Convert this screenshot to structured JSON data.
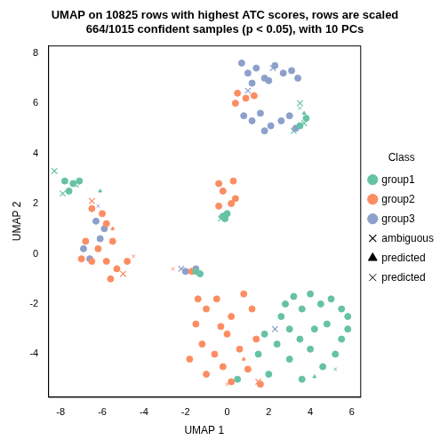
{
  "chart_data": {
    "type": "scatter",
    "title": [
      "UMAP on 10825 rows with highest ATC scores, rows are scaled",
      "664/1015 confident samples (p < 0.05), with 10 PCs"
    ],
    "x_label": "UMAP 1",
    "y_label": "UMAP 2",
    "xlim": [
      -8.6,
      6.4
    ],
    "xticks": [
      -8,
      -6,
      -4,
      -2,
      0,
      2,
      4,
      6
    ],
    "ylim": [
      -5.7,
      8.3
    ],
    "yticks": [
      -4,
      -2,
      0,
      2,
      4,
      6,
      8
    ],
    "grid": false,
    "legend": "right",
    "legend_title": "Class",
    "series": [
      {
        "name": "group1",
        "color": "#66C2A5",
        "marker": "circle",
        "values": [
          [
            -7.8,
            2.9
          ],
          [
            -7.4,
            2.8
          ],
          [
            -7.1,
            2.9
          ],
          [
            -7.6,
            2.5
          ],
          [
            -0.2,
            1.5
          ],
          [
            -0.1,
            1.4
          ],
          [
            0,
            1.6
          ],
          [
            -1.5,
            -0.7
          ],
          [
            -1.3,
            -0.8
          ],
          [
            2.8,
            -2.0
          ],
          [
            3.2,
            -1.7
          ],
          [
            3.6,
            -2.2
          ],
          [
            4.0,
            -1.6
          ],
          [
            4.5,
            -2.0
          ],
          [
            5.0,
            -1.8
          ],
          [
            5.5,
            -2.2
          ],
          [
            5.8,
            -2.5
          ],
          [
            3.0,
            -3.0
          ],
          [
            3.5,
            -3.4
          ],
          [
            4.2,
            -3.0
          ],
          [
            4.8,
            -2.8
          ],
          [
            5.5,
            -3.4
          ],
          [
            2.4,
            -3.6
          ],
          [
            3.0,
            -4.2
          ],
          [
            4.0,
            -3.8
          ],
          [
            4.6,
            -4.5
          ],
          [
            5.2,
            -4.0
          ],
          [
            1.5,
            -4.0
          ],
          [
            2.0,
            -4.8
          ],
          [
            0.5,
            -5.0
          ],
          [
            3.6,
            -5.0
          ],
          [
            2.6,
            -2.5
          ],
          [
            1.8,
            -3.2
          ],
          [
            5.8,
            -3.0
          ],
          [
            3.8,
            5.4
          ],
          [
            3.5,
            5.1
          ]
        ]
      },
      {
        "name": "group2",
        "color": "#FC8D62",
        "marker": "circle",
        "values": [
          [
            -6.5,
            1.8
          ],
          [
            -6.0,
            1.6
          ],
          [
            -5.8,
            1.2
          ],
          [
            -6.8,
            0.5
          ],
          [
            -6.2,
            0.2
          ],
          [
            -5.5,
            0.5
          ],
          [
            -5.8,
            -0.3
          ],
          [
            -5.3,
            -0.6
          ],
          [
            -5.6,
            -1.0
          ],
          [
            -6.5,
            -0.3
          ],
          [
            -7.0,
            -0.2
          ],
          [
            -4.8,
            -0.3
          ],
          [
            -0.4,
            2.8
          ],
          [
            -0.2,
            2.5
          ],
          [
            0.3,
            2.9
          ],
          [
            0.2,
            2.0
          ],
          [
            -0.4,
            1.9
          ],
          [
            0.4,
            2.2
          ],
          [
            -1.7,
            -0.7
          ],
          [
            0.5,
            6.4
          ],
          [
            0.9,
            6.2
          ],
          [
            1.3,
            6.3
          ],
          [
            0.4,
            6.0
          ],
          [
            -1.5,
            -2.8
          ],
          [
            -1.0,
            -2.2
          ],
          [
            -0.5,
            -1.8
          ],
          [
            0.2,
            -2.5
          ],
          [
            0.8,
            -1.6
          ],
          [
            1.2,
            -2.2
          ],
          [
            -1.8,
            -4.2
          ],
          [
            -1.2,
            -3.6
          ],
          [
            -0.6,
            -4.0
          ],
          [
            0,
            -3.2
          ],
          [
            0.6,
            -3.8
          ],
          [
            1.0,
            -4.6
          ],
          [
            -1.0,
            -4.8
          ],
          [
            -0.2,
            -4.5
          ],
          [
            0.2,
            -5.1
          ],
          [
            1.4,
            -3.4
          ],
          [
            1.6,
            -5.2
          ],
          [
            -0.3,
            -2.9
          ],
          [
            -1.4,
            -1.8
          ]
        ]
      },
      {
        "name": "group3",
        "color": "#8DA0CB",
        "marker": "circle",
        "values": [
          [
            0.7,
            7.6
          ],
          [
            1.0,
            7.2
          ],
          [
            1.4,
            7.4
          ],
          [
            1.8,
            7.0
          ],
          [
            2.3,
            7.5
          ],
          [
            2.7,
            7.2
          ],
          [
            3.1,
            7.3
          ],
          [
            3.4,
            7.0
          ],
          [
            1.2,
            6.8
          ],
          [
            2.0,
            6.9
          ],
          [
            0.8,
            5.5
          ],
          [
            1.2,
            5.3
          ],
          [
            1.6,
            5.6
          ],
          [
            2.1,
            5.1
          ],
          [
            2.6,
            5.3
          ],
          [
            3.0,
            5.5
          ],
          [
            3.3,
            5.0
          ],
          [
            1.8,
            4.9
          ],
          [
            -6.9,
            0.2
          ],
          [
            -6.6,
            -0.2
          ],
          [
            -5.9,
            1.0
          ],
          [
            -6.3,
            1.3
          ],
          [
            -1.5,
            -0.6
          ],
          [
            -2.0,
            -0.7
          ],
          [
            -6.1,
            0.6
          ]
        ]
      },
      {
        "name": "ambiguous",
        "color": "#000000",
        "marker": "cross",
        "values": [
          [
            -8.3,
            3.3
          ],
          [
            -7.9,
            2.4
          ],
          [
            -6.5,
            2.1
          ],
          [
            -5.0,
            -0.8
          ],
          [
            3.5,
            6.0
          ],
          [
            3.7,
            5.2
          ],
          [
            3.2,
            4.9
          ],
          [
            2.2,
            7.4
          ],
          [
            1.0,
            6.5
          ],
          [
            -2.2,
            -0.6
          ],
          [
            -0.3,
            1.4
          ],
          [
            2.3,
            -3.0
          ],
          [
            1.5,
            -5.1
          ]
        ],
        "colors": [
          "#66C2A5",
          "#66C2A5",
          "#FC8D62",
          "#FC8D62",
          "#66C2A5",
          "#66C2A5",
          "#66C2A5",
          "#8DA0CB",
          "#8DA0CB",
          "#8DA0CB",
          "#66C2A5",
          "#8DA0CB",
          "#FC8D62"
        ]
      },
      {
        "name": "predicted",
        "color": "#000000",
        "marker": "triangle",
        "values": [
          [
            3.7,
            5.6
          ],
          [
            -5.5,
            1.0
          ],
          [
            0.8,
            -4.2
          ],
          [
            4.2,
            -4.9
          ],
          [
            -6.1,
            2.5
          ]
        ],
        "colors": [
          "#66C2A5",
          "#FC8D62",
          "#FC8D62",
          "#66C2A5",
          "#66C2A5"
        ]
      },
      {
        "name": "predicted",
        "color": "#000000",
        "marker": "x",
        "values": [
          [
            3.5,
            5.8
          ],
          [
            -4.5,
            -0.1
          ],
          [
            -2.6,
            -0.6
          ],
          [
            0.0,
            -5.2
          ],
          [
            5.2,
            -4.6
          ],
          [
            -7.2,
            2.7
          ],
          [
            -6.2,
            1.9
          ]
        ],
        "colors": [
          "#66C2A5",
          "#FC8D62",
          "#FC8D62",
          "#FC8D62",
          "#66C2A5",
          "#66C2A5",
          "#8DA0CB"
        ]
      }
    ]
  }
}
